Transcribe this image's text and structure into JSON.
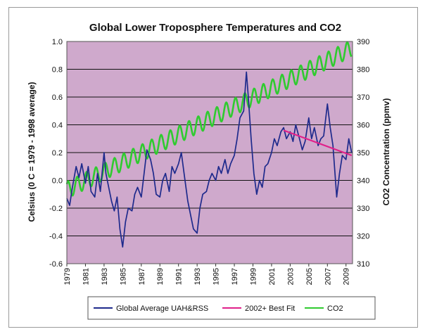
{
  "chart_data": {
    "type": "line",
    "title": "Global Lower Troposphere Temperatures and CO2",
    "ylabel_left": "Celsius (0 C = 1979 - 1998 average)",
    "ylabel_right": "CO2 Concentration (ppmv)",
    "xlim": [
      1979,
      2009.7
    ],
    "ylim_left": [
      -0.6,
      1.0
    ],
    "ylim_right": [
      310,
      390
    ],
    "yticks_left": [
      "-0.6",
      "-0.4",
      "-0.2",
      "0.0",
      "0.2",
      "0.4",
      "0.6",
      "0.8",
      "1.0"
    ],
    "yticks_right": [
      "310",
      "320",
      "330",
      "340",
      "350",
      "360",
      "370",
      "380",
      "390"
    ],
    "xticks": [
      "1979",
      "1981",
      "1983",
      "1985",
      "1987",
      "1989",
      "1991",
      "1993",
      "1995",
      "1997",
      "1999",
      "2001",
      "2003",
      "2005",
      "2007",
      "2009"
    ],
    "grid": "horizontal",
    "plot_background": "#cfa9cc",
    "series": [
      {
        "name": "Global Average UAH&RSS",
        "color": "#1e2a8c",
        "axis": "left",
        "x": [
          1979.0,
          1979.3,
          1979.6,
          1980.0,
          1980.3,
          1980.6,
          1981.0,
          1981.3,
          1981.6,
          1982.0,
          1982.3,
          1982.6,
          1983.0,
          1983.2,
          1983.5,
          1983.8,
          1984.1,
          1984.4,
          1984.7,
          1985.0,
          1985.3,
          1985.6,
          1986.0,
          1986.3,
          1986.6,
          1987.0,
          1987.3,
          1987.6,
          1988.0,
          1988.3,
          1988.6,
          1989.0,
          1989.3,
          1989.6,
          1990.0,
          1990.3,
          1990.6,
          1991.0,
          1991.3,
          1991.6,
          1992.0,
          1992.3,
          1992.6,
          1993.0,
          1993.3,
          1993.6,
          1994.0,
          1994.3,
          1994.6,
          1995.0,
          1995.3,
          1995.6,
          1996.0,
          1996.3,
          1996.6,
          1997.0,
          1997.3,
          1997.6,
          1998.0,
          1998.3,
          1998.5,
          1998.8,
          1999.1,
          1999.4,
          1999.7,
          2000.0,
          2000.3,
          2000.6,
          2001.0,
          2001.3,
          2001.6,
          2002.0,
          2002.3,
          2002.6,
          2003.0,
          2003.3,
          2003.6,
          2004.0,
          2004.3,
          2004.6,
          2005.0,
          2005.3,
          2005.6,
          2006.0,
          2006.3,
          2006.6,
          2007.0,
          2007.3,
          2007.6,
          2008.0,
          2008.3,
          2008.6,
          2009.0,
          2009.3,
          2009.6
        ],
        "y": [
          -0.13,
          -0.18,
          -0.05,
          0.1,
          0.02,
          0.12,
          -0.02,
          0.1,
          -0.08,
          -0.12,
          0.05,
          -0.08,
          0.2,
          0.05,
          -0.05,
          -0.15,
          -0.22,
          -0.12,
          -0.35,
          -0.48,
          -0.3,
          -0.2,
          -0.22,
          -0.1,
          -0.05,
          -0.12,
          0.05,
          0.22,
          0.15,
          0.05,
          -0.1,
          -0.12,
          0.0,
          0.05,
          -0.08,
          0.1,
          0.05,
          0.12,
          0.2,
          0.05,
          -0.15,
          -0.25,
          -0.35,
          -0.38,
          -0.2,
          -0.1,
          -0.08,
          0.0,
          0.05,
          0.0,
          0.1,
          0.05,
          0.15,
          0.05,
          0.12,
          0.18,
          0.3,
          0.45,
          0.5,
          0.78,
          0.6,
          0.3,
          0.05,
          -0.1,
          0.0,
          -0.05,
          0.1,
          0.12,
          0.2,
          0.3,
          0.25,
          0.35,
          0.38,
          0.3,
          0.35,
          0.28,
          0.4,
          0.3,
          0.22,
          0.28,
          0.45,
          0.3,
          0.38,
          0.25,
          0.3,
          0.32,
          0.55,
          0.38,
          0.25,
          -0.12,
          0.05,
          0.18,
          0.15,
          0.3,
          0.2
        ]
      },
      {
        "name": "2002+ Best Fit",
        "color": "#e0208a",
        "axis": "left",
        "x": [
          2002.3,
          2009.6
        ],
        "y": [
          0.36,
          0.18
        ]
      },
      {
        "name": "CO2",
        "color": "#2fcb2f",
        "axis": "right",
        "trend_start": [
          1979.0,
          336.5
        ],
        "trend_end": [
          2009.6,
          387.5
        ],
        "seasonal_amplitude": 3.0
      }
    ]
  }
}
